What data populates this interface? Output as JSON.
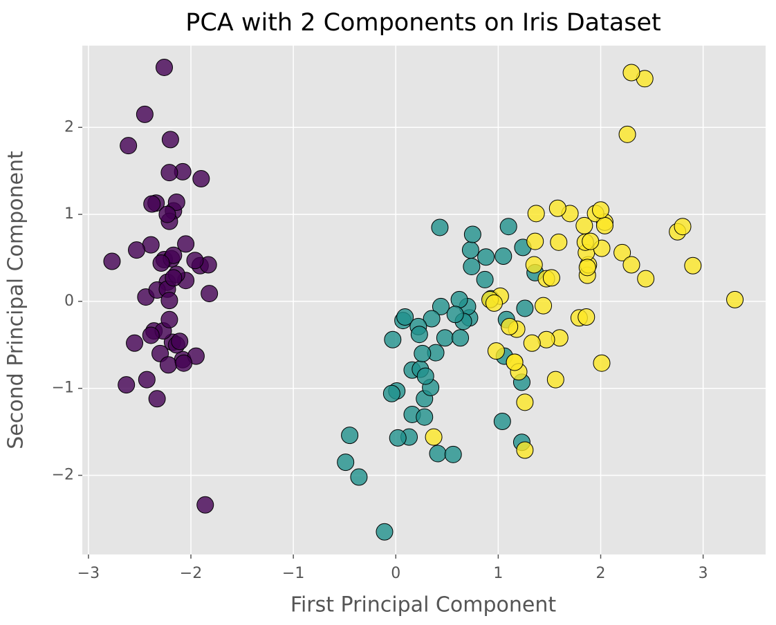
{
  "chart_data": {
    "type": "scatter",
    "title": "PCA with 2 Components on Iris Dataset",
    "x_label": "First Principal Component",
    "y_label": "Second Principal Component",
    "xlim": [
      -3.06,
      3.61
    ],
    "ylim": [
      -2.91,
      2.94
    ],
    "xticks": [
      {
        "value": -3,
        "label": "−3"
      },
      {
        "value": -2,
        "label": "−2"
      },
      {
        "value": -1,
        "label": "−1"
      },
      0,
      1,
      2,
      3
    ],
    "yticks": [
      {
        "value": -2,
        "label": "−2"
      },
      {
        "value": -1,
        "label": "−1"
      },
      0,
      1,
      2
    ],
    "grid": true,
    "series": [
      {
        "color": "#440154",
        "x": [
          -2.26,
          -2.08,
          -2.36,
          -2.3,
          -2.39,
          -2.08,
          -2.44,
          -2.23,
          -2.33,
          -2.18,
          -2.17,
          -2.33,
          -2.22,
          -2.63,
          -2.2,
          -2.26,
          -2.21,
          -2.19,
          -1.9,
          -2.34,
          -1.91,
          -2.21,
          -2.77,
          -1.82,
          -2.23,
          -1.95,
          -2.05,
          -2.17,
          -2.14,
          -2.27,
          -2.14,
          -1.83,
          -2.61,
          -2.45,
          -2.11,
          -2.21,
          -2.05,
          -2.53,
          -2.43,
          -2.17,
          -2.29,
          -1.86,
          -2.55,
          -1.96,
          -2.14,
          -2.07,
          -2.38,
          -2.39,
          -2.23,
          -2.21
        ],
        "values": [
          0.48,
          -0.67,
          -0.34,
          -0.6,
          0.65,
          1.49,
          0.05,
          0.22,
          -1.12,
          -0.47,
          1.04,
          0.13,
          -0.73,
          -0.96,
          1.86,
          2.69,
          1.48,
          0.49,
          1.41,
          1.13,
          0.41,
          0.92,
          0.46,
          0.09,
          0.14,
          -0.63,
          0.24,
          0.53,
          0.31,
          -0.34,
          -0.5,
          0.42,
          1.79,
          2.15,
          -0.46,
          -0.21,
          0.66,
          0.59,
          -0.9,
          0.27,
          0.44,
          -2.34,
          -0.48,
          0.47,
          1.14,
          -0.71,
          1.12,
          -0.39,
          1.0,
          0.01
        ]
      },
      {
        "color": "#21918c",
        "x": [
          1.1,
          0.73,
          1.24,
          0.41,
          1.08,
          0.39,
          0.75,
          -0.49,
          0.93,
          0.01,
          -0.11,
          0.44,
          0.56,
          0.72,
          -0.03,
          0.88,
          0.35,
          0.16,
          1.23,
          0.16,
          0.74,
          0.48,
          1.23,
          0.63,
          0.7,
          0.87,
          1.26,
          1.36,
          0.66,
          -0.04,
          0.13,
          0.02,
          0.24,
          1.06,
          0.22,
          0.43,
          1.05,
          1.04,
          0.07,
          0.28,
          0.28,
          0.62,
          0.34,
          -0.36,
          0.29,
          0.09,
          0.23,
          0.58,
          -0.45,
          0.26
        ],
        "values": [
          0.86,
          0.59,
          0.62,
          -1.75,
          -0.21,
          -0.59,
          0.77,
          -1.85,
          0.03,
          -1.03,
          -2.65,
          -0.06,
          -1.76,
          -0.19,
          -0.44,
          0.51,
          -0.2,
          -0.79,
          -1.62,
          -1.3,
          0.4,
          -0.42,
          -0.93,
          -0.42,
          -0.06,
          0.25,
          -0.08,
          0.33,
          -0.23,
          -1.06,
          -1.56,
          -1.57,
          -0.78,
          -0.63,
          -0.29,
          0.85,
          0.52,
          -1.38,
          -0.22,
          -1.33,
          -1.12,
          0.02,
          -0.99,
          -2.02,
          -0.86,
          -0.18,
          -0.38,
          -0.15,
          -1.54,
          -0.6
        ]
      },
      {
        "color": "#fde725",
        "x": [
          1.84,
          1.16,
          2.21,
          1.44,
          1.87,
          2.75,
          0.37,
          2.3,
          2.01,
          2.26,
          1.36,
          1.6,
          1.88,
          1.26,
          1.47,
          1.59,
          1.47,
          2.43,
          3.31,
          1.26,
          2.04,
          0.98,
          2.9,
          1.33,
          1.7,
          1.95,
          1.18,
          1.02,
          1.79,
          1.86,
          2.44,
          2.3,
          1.86,
          1.11,
          1.2,
          2.8,
          1.58,
          1.35,
          0.92,
          1.85,
          2.01,
          1.9,
          1.16,
          2.04,
          2.0,
          1.87,
          1.56,
          1.52,
          1.37,
          0.96
        ],
        "values": [
          0.87,
          -0.7,
          0.56,
          -0.05,
          0.3,
          0.8,
          -1.56,
          0.42,
          -0.71,
          1.92,
          0.69,
          -0.42,
          0.42,
          -1.16,
          -0.44,
          0.68,
          0.26,
          2.56,
          0.02,
          -1.71,
          0.91,
          -0.57,
          0.41,
          -0.48,
          1.01,
          1.01,
          -0.32,
          0.06,
          -0.19,
          0.56,
          0.26,
          2.63,
          -0.18,
          -0.29,
          -0.81,
          0.86,
          1.07,
          0.42,
          0.02,
          0.68,
          0.61,
          0.69,
          -0.7,
          0.87,
          1.05,
          0.39,
          -0.9,
          0.27,
          1.01,
          -0.02
        ]
      }
    ]
  }
}
